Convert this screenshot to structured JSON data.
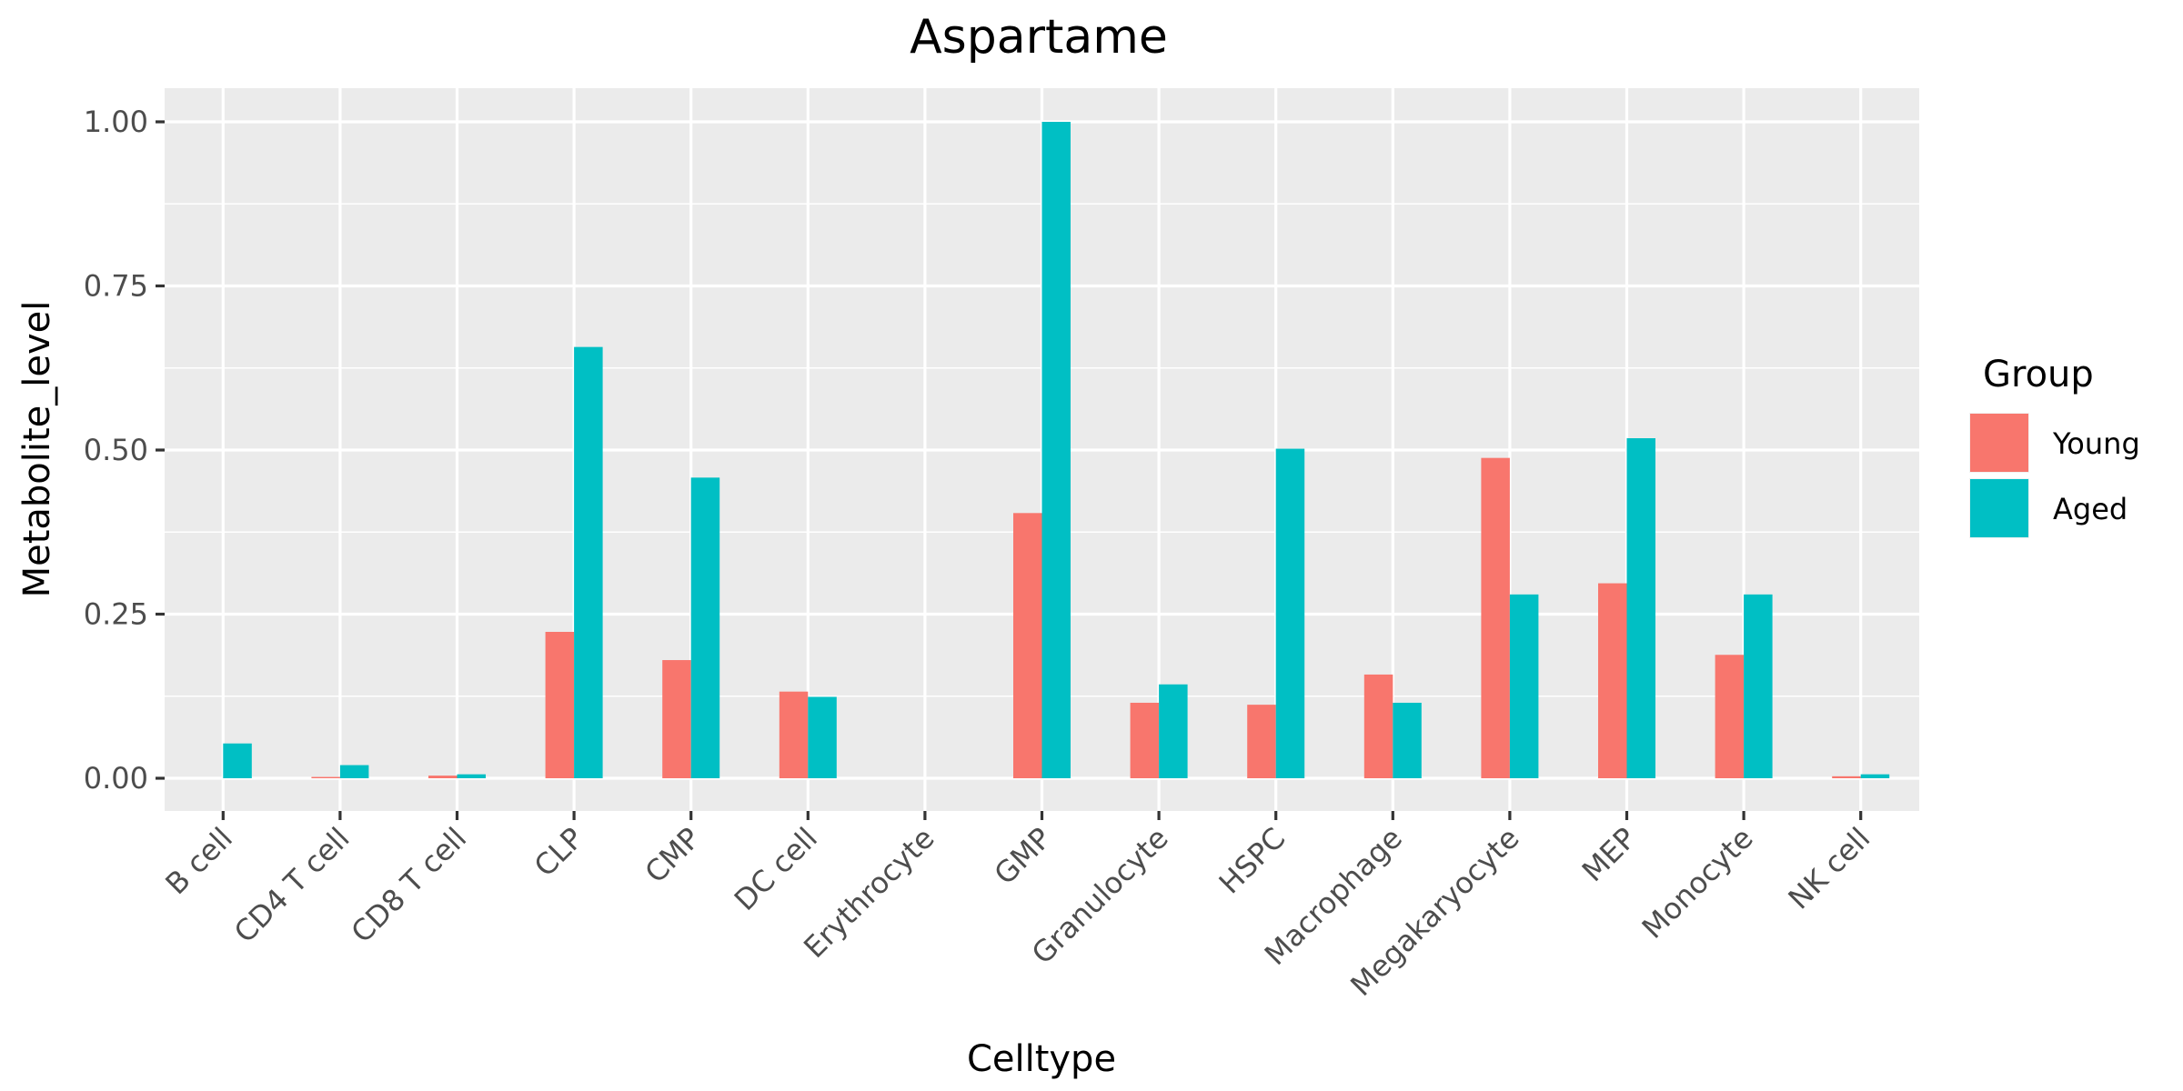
{
  "chart_data": {
    "type": "bar",
    "title": "Aspartame",
    "xlabel": "Celltype",
    "ylabel": "Metabolite_level",
    "ylim": [
      -0.05,
      1.05
    ],
    "yticks": [
      0.0,
      0.25,
      0.5,
      0.75,
      1.0
    ],
    "ytick_labels": [
      "0.00",
      "0.25",
      "0.50",
      "0.75",
      "1.00"
    ],
    "grid": true,
    "legend_title": "Group",
    "legend_position": "right",
    "categories": [
      "B cell",
      "CD4 T cell",
      "CD8 T cell",
      "CLP",
      "CMP",
      "DC cell",
      "Erythrocyte",
      "GMP",
      "Granulocyte",
      "HSPC",
      "Macrophage",
      "Megakaryocyte",
      "MEP",
      "Monocyte",
      "NK cell"
    ],
    "series": [
      {
        "name": "Young",
        "color": "#F8766D",
        "values": [
          0.0,
          0.002,
          0.004,
          0.223,
          0.18,
          0.132,
          0.0,
          0.404,
          0.115,
          0.112,
          0.158,
          0.488,
          0.297,
          0.188,
          0.003
        ]
      },
      {
        "name": "Aged",
        "color": "#00BFC4",
        "values": [
          0.053,
          0.02,
          0.006,
          0.657,
          0.458,
          0.124,
          0.0,
          1.0,
          0.143,
          0.502,
          0.115,
          0.28,
          0.518,
          0.28,
          0.006
        ]
      }
    ]
  }
}
